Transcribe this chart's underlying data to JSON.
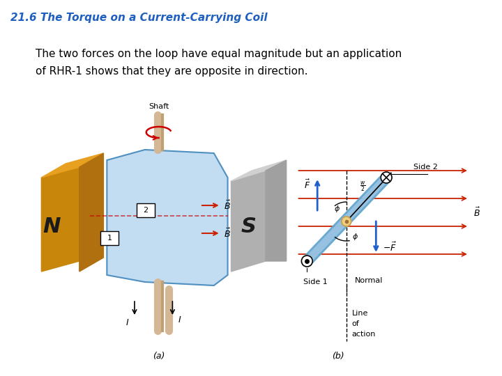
{
  "title": "21.6 The Torque on a Current-Carrying Coil",
  "body_text_line1": "The two forces on the loop have equal magnitude but an application",
  "body_text_line2": "of RHR-1 shows that they are opposite in direction.",
  "title_color": "#1f5fc0",
  "body_text_color": "#000000",
  "background_color": "#ffffff",
  "label_a": "(a)",
  "label_b": "(b)",
  "fig_width": 7.2,
  "fig_height": 5.4,
  "dpi": 100
}
